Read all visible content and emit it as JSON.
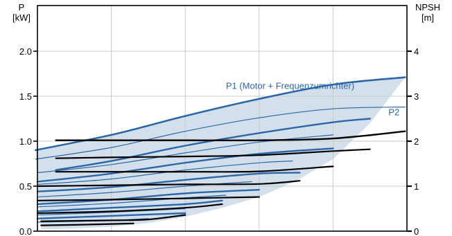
{
  "chart_data": {
    "type": "line",
    "title": "",
    "left_axis": {
      "label_line1": "P",
      "label_line2": "[kW]",
      "ylim": [
        0,
        2.2
      ],
      "ticks": [
        "0.0",
        "0.5",
        "1.0",
        "1.5",
        "2.0"
      ],
      "tick_values": [
        0,
        0.5,
        1.0,
        1.5,
        2.0
      ]
    },
    "right_axis": {
      "label_line1": "NPSH",
      "label_line2": "[m]",
      "ylim": [
        0,
        4.4
      ],
      "ticks": [
        "0",
        "1",
        "2",
        "3",
        "4"
      ],
      "tick_values": [
        0,
        1,
        2,
        3,
        4
      ]
    },
    "x": {
      "xlim": [
        0,
        10
      ],
      "gridlines": [
        0,
        2,
        4,
        6,
        8,
        10
      ],
      "tick_labels": []
    },
    "grid": true,
    "colors": {
      "p1": "#2b67a6",
      "p2": "#2b67a6",
      "npsh": "#000000",
      "band": "#cfdcea",
      "grid": "#c9c9c9"
    },
    "annotations": [
      {
        "text": "P1 (Motor + Frequenzumrichter)",
        "x": 5.1,
        "y": 1.58,
        "axis": "left",
        "color": "#2b67a6"
      },
      {
        "text": "P2",
        "x": 9.5,
        "y": 1.29,
        "axis": "left",
        "color": "#2b67a6"
      }
    ],
    "band": {
      "upper": [
        [
          -0.05,
          0.9
        ],
        [
          1,
          0.97
        ],
        [
          2,
          1.07
        ],
        [
          3,
          1.17
        ],
        [
          4,
          1.28
        ],
        [
          5,
          1.38
        ],
        [
          6,
          1.47
        ],
        [
          7,
          1.56
        ],
        [
          8,
          1.63
        ],
        [
          9,
          1.68
        ],
        [
          9.95,
          1.71
        ]
      ],
      "lower": [
        [
          9.95,
          1.71
        ],
        [
          9,
          1.2
        ],
        [
          8,
          0.8
        ],
        [
          7,
          0.56
        ],
        [
          6,
          0.38
        ],
        [
          5,
          0.26
        ],
        [
          4,
          0.16
        ],
        [
          3,
          0.09
        ],
        [
          2,
          0.05
        ],
        [
          1,
          0.03
        ],
        [
          0.1,
          0.02
        ]
      ]
    },
    "series": [
      {
        "group": "P1",
        "values": [
          [
            -0.05,
            0.9
          ],
          [
            2,
            1.07
          ],
          [
            4,
            1.28
          ],
          [
            6,
            1.47
          ],
          [
            8,
            1.63
          ],
          [
            9.95,
            1.71
          ]
        ]
      },
      {
        "group": "P1",
        "values": [
          [
            0.5,
            0.68
          ],
          [
            2,
            0.78
          ],
          [
            4,
            0.95
          ],
          [
            6,
            1.09
          ],
          [
            8,
            1.21
          ],
          [
            9,
            1.25
          ]
        ]
      },
      {
        "group": "P1",
        "values": [
          [
            0,
            0.55
          ],
          [
            2,
            0.64
          ],
          [
            4,
            0.76
          ],
          [
            6,
            0.86
          ],
          [
            8,
            0.92
          ]
        ]
      },
      {
        "group": "P1",
        "values": [
          [
            0,
            0.44
          ],
          [
            2,
            0.49
          ],
          [
            4,
            0.57
          ],
          [
            6,
            0.64
          ],
          [
            7.1,
            0.65
          ]
        ]
      },
      {
        "group": "P1",
        "values": [
          [
            0,
            0.3
          ],
          [
            2,
            0.35
          ],
          [
            4,
            0.42
          ],
          [
            6,
            0.46
          ]
        ]
      },
      {
        "group": "P1",
        "values": [
          [
            0,
            0.22
          ],
          [
            2,
            0.26
          ],
          [
            4,
            0.3
          ],
          [
            5,
            0.34
          ]
        ]
      },
      {
        "group": "P1",
        "values": [
          [
            0,
            0.14
          ],
          [
            2,
            0.17
          ],
          [
            4,
            0.2
          ]
        ]
      },
      {
        "group": "P2",
        "values": [
          [
            -0.05,
            0.8
          ],
          [
            2,
            0.93
          ],
          [
            4,
            1.11
          ],
          [
            6,
            1.26
          ],
          [
            8,
            1.36
          ],
          [
            9.95,
            1.38
          ]
        ]
      },
      {
        "group": "P2",
        "values": [
          [
            0,
            0.65
          ],
          [
            2,
            0.74
          ],
          [
            4,
            0.87
          ],
          [
            6,
            0.99
          ],
          [
            8,
            1.07
          ]
        ]
      },
      {
        "group": "P2",
        "values": [
          [
            0,
            0.52
          ],
          [
            2,
            0.58
          ],
          [
            4,
            0.68
          ],
          [
            6,
            0.76
          ],
          [
            6.9,
            0.78
          ]
        ]
      },
      {
        "group": "P2",
        "values": [
          [
            0,
            0.38
          ],
          [
            2,
            0.43
          ],
          [
            4,
            0.5
          ],
          [
            5.8,
            0.55
          ]
        ]
      },
      {
        "group": "P2",
        "values": [
          [
            0,
            0.27
          ],
          [
            2,
            0.31
          ],
          [
            4,
            0.37
          ],
          [
            5.1,
            0.4
          ]
        ]
      },
      {
        "group": "P2",
        "values": [
          [
            0,
            0.18
          ],
          [
            2,
            0.21
          ],
          [
            4,
            0.25
          ]
        ]
      },
      {
        "group": "P2",
        "values": [
          [
            0,
            0.1
          ],
          [
            2,
            0.12
          ],
          [
            3,
            0.14
          ]
        ]
      },
      {
        "group": "NPSH",
        "values": [
          [
            0.5,
            2.02
          ],
          [
            2,
            2.02
          ],
          [
            4,
            2.02
          ],
          [
            6,
            2.02
          ],
          [
            8,
            2.06
          ],
          [
            9.95,
            2.22
          ]
        ]
      },
      {
        "group": "NPSH",
        "values": [
          [
            0.5,
            1.62
          ],
          [
            2,
            1.64
          ],
          [
            4,
            1.66
          ],
          [
            6,
            1.69
          ],
          [
            8,
            1.78
          ],
          [
            9,
            1.82
          ]
        ]
      },
      {
        "group": "NPSH",
        "values": [
          [
            0.5,
            1.32
          ],
          [
            2,
            1.32
          ],
          [
            4,
            1.32
          ],
          [
            6,
            1.33
          ],
          [
            8,
            1.44
          ]
        ]
      },
      {
        "group": "NPSH",
        "values": [
          [
            0,
            1.0
          ],
          [
            2,
            1.02
          ],
          [
            4,
            1.04
          ],
          [
            6,
            1.05
          ],
          [
            7.1,
            1.12
          ]
        ]
      },
      {
        "group": "NPSH",
        "values": [
          [
            0,
            0.68
          ],
          [
            2,
            0.7
          ],
          [
            4,
            0.73
          ],
          [
            6,
            0.76
          ]
        ]
      },
      {
        "group": "NPSH",
        "values": [
          [
            0,
            0.4
          ],
          [
            2,
            0.44
          ],
          [
            4,
            0.52
          ],
          [
            5,
            0.6
          ]
        ]
      },
      {
        "group": "NPSH",
        "values": [
          [
            0.1,
            0.22
          ],
          [
            2,
            0.24
          ],
          [
            3,
            0.26
          ],
          [
            4,
            0.36
          ]
        ]
      },
      {
        "group": "NPSH",
        "values": [
          [
            0.1,
            0.13
          ],
          [
            1,
            0.14
          ],
          [
            2,
            0.16
          ],
          [
            2.6,
            0.17
          ]
        ]
      }
    ]
  }
}
